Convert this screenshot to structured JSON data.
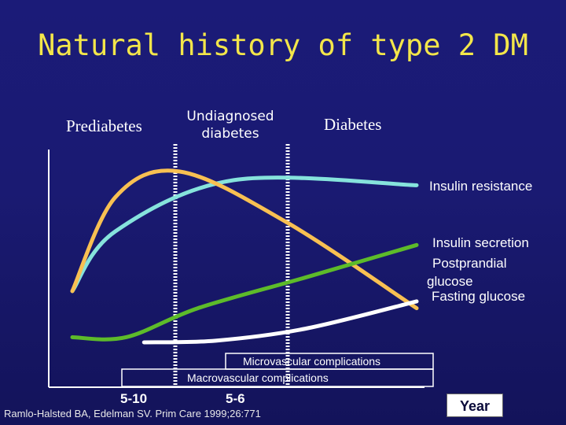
{
  "title": "Natural history of type 2 DM",
  "phases": {
    "prediabetes": "Prediabetes",
    "undiagnosed_line1": "Undiagnosed",
    "undiagnosed_line2": "diabetes",
    "diabetes": "Diabetes"
  },
  "chart_data": {
    "type": "line",
    "title": "Natural history of type 2 DM",
    "xlabel": "Year",
    "ylabel": "",
    "x_ticks": [
      "5-10",
      "5-6"
    ],
    "grid": false,
    "series": [
      {
        "name": "Insulin resistance",
        "color": "#86e3dc",
        "values": [
          [
            0,
            30
          ],
          [
            1.2,
            65
          ],
          [
            4.5,
            95
          ],
          [
            9.6,
            92
          ]
        ]
      },
      {
        "name": "Insulin secretion",
        "color": "#f8c052",
        "values": [
          [
            0,
            30
          ],
          [
            1.2,
            85
          ],
          [
            3.0,
            100
          ],
          [
            6.0,
            70
          ],
          [
            9.6,
            20
          ]
        ]
      },
      {
        "name": "Postprandial glucose",
        "color": "#5dbb2a",
        "values": [
          [
            0,
            3
          ],
          [
            1.5,
            3
          ],
          [
            3.5,
            20
          ],
          [
            6.5,
            38
          ],
          [
            9.6,
            57
          ]
        ]
      },
      {
        "name": "Fasting glucose",
        "color": "#ffffff",
        "values": [
          [
            2.0,
            0
          ],
          [
            4.0,
            1
          ],
          [
            6.5,
            8
          ],
          [
            9.6,
            24
          ]
        ]
      }
    ],
    "annotations": [
      "Microvascular complications",
      "Macrovascular complications"
    ]
  },
  "labels": {
    "insulin_resistance": "Insulin resistance",
    "insulin_secretion": "Insulin secretion",
    "postprandial_line1": "Postprandial",
    "postprandial_line2": "glucose",
    "fasting_glucose": "Fasting glucose",
    "microvascular": "Microvascular complications",
    "macrovascular": "Macrovascular complications"
  },
  "ticks": {
    "t1": "5-10",
    "t2": "5-6"
  },
  "citation": "Ramlo-Halsted BA, Edelman SV. Prim Care 1999;26:771",
  "year_label": "Year",
  "colors": {
    "background": "#1a1a72",
    "title": "#f3e64a",
    "insulin_resistance": "#86e3dc",
    "insulin_secretion": "#f8c052",
    "postprandial_glucose": "#5dbb2a",
    "fasting_glucose": "#ffffff"
  }
}
